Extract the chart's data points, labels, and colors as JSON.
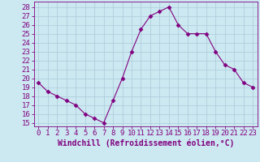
{
  "x": [
    0,
    1,
    2,
    3,
    4,
    5,
    6,
    7,
    8,
    9,
    10,
    11,
    12,
    13,
    14,
    15,
    16,
    17,
    18,
    19,
    20,
    21,
    22,
    23
  ],
  "y": [
    19.5,
    18.5,
    18.0,
    17.5,
    17.0,
    16.0,
    15.5,
    15.0,
    17.5,
    20.0,
    23.0,
    25.5,
    27.0,
    27.5,
    28.0,
    26.0,
    25.0,
    25.0,
    25.0,
    23.0,
    21.5,
    21.0,
    19.5,
    19.0
  ],
  "line_color": "#800080",
  "marker": "D",
  "marker_size": 2.5,
  "bg_color": "#cce8f0",
  "grid_color": "#aaccdd",
  "xlabel": "Windchill (Refroidissement éolien,°C)",
  "ylabel_ticks": [
    15,
    16,
    17,
    18,
    19,
    20,
    21,
    22,
    23,
    24,
    25,
    26,
    27,
    28
  ],
  "ylim": [
    14.6,
    28.6
  ],
  "xlim": [
    -0.5,
    23.5
  ],
  "tick_fontsize": 6.5,
  "xlabel_fontsize": 7,
  "label_color": "#800080"
}
